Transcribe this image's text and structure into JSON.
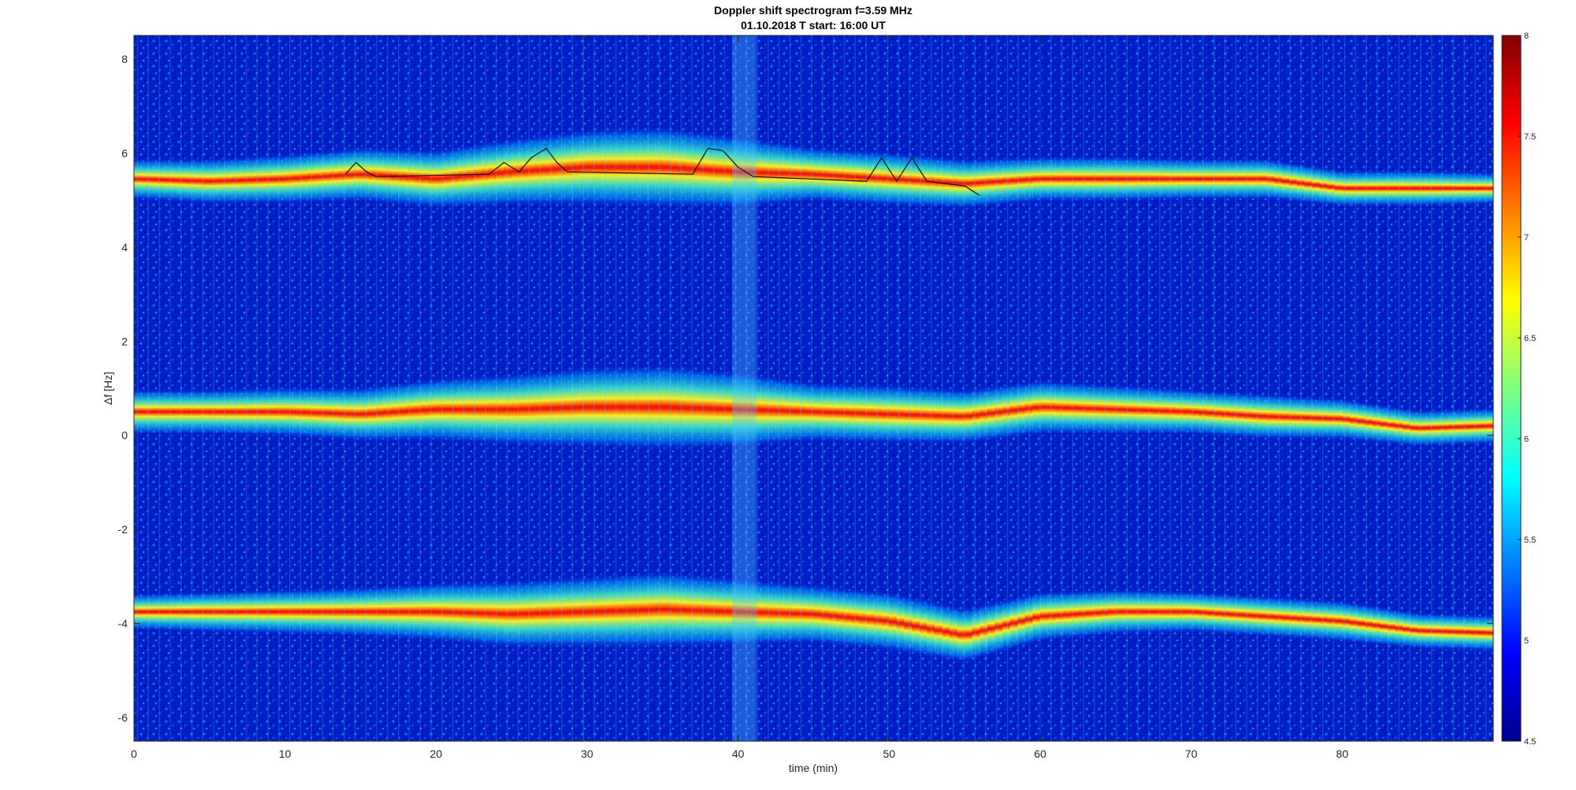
{
  "chart_data": {
    "type": "heatmap",
    "title": "Doppler shift spectrogram f=3.59 MHz",
    "subtitle": "01.10.2018   T start: 16:00 UT",
    "xlabel": "time (min)",
    "ylabel": "Δf [Hz]",
    "xlim": [
      0,
      90
    ],
    "ylim": [
      -6.5,
      8.5
    ],
    "xticks": [
      "0",
      "10",
      "20",
      "30",
      "40",
      "50",
      "60",
      "70",
      "80"
    ],
    "yticks": [
      "-6",
      "-4",
      "-2",
      "0",
      "2",
      "4",
      "6",
      "8"
    ],
    "colorbar": {
      "colormap": "jet",
      "clim": [
        4.5,
        8
      ],
      "ticks": [
        "4.5",
        "5",
        "5.5",
        "6",
        "6.5",
        "7",
        "7.5",
        "8"
      ]
    },
    "grid": false,
    "bands": [
      {
        "t": [
          0,
          5,
          10,
          15,
          20,
          25,
          30,
          35,
          40,
          45,
          50,
          55,
          60,
          65,
          70,
          75,
          80,
          85,
          90
        ],
        "df": [
          5.45,
          5.4,
          5.45,
          5.55,
          5.45,
          5.6,
          5.7,
          5.7,
          5.6,
          5.55,
          5.45,
          5.35,
          5.45,
          5.45,
          5.45,
          5.45,
          5.25,
          5.25,
          5.25
        ],
        "width": [
          0.9,
          1.0,
          1.1,
          1.2,
          1.3,
          1.5,
          1.7,
          1.8,
          1.6,
          1.2,
          1.2,
          1.1,
          1.0,
          1.0,
          0.9,
          0.9,
          0.8,
          0.8,
          0.7
        ]
      },
      {
        "t": [
          0,
          5,
          10,
          15,
          20,
          25,
          30,
          35,
          40,
          45,
          50,
          55,
          60,
          65,
          70,
          75,
          80,
          85,
          90
        ],
        "df": [
          0.5,
          0.5,
          0.5,
          0.45,
          0.55,
          0.55,
          0.6,
          0.6,
          0.55,
          0.5,
          0.45,
          0.4,
          0.6,
          0.55,
          0.5,
          0.4,
          0.35,
          0.15,
          0.2
        ],
        "width": [
          1.0,
          1.0,
          1.1,
          1.2,
          1.4,
          1.6,
          1.8,
          1.9,
          1.7,
          1.3,
          1.3,
          1.2,
          1.2,
          1.1,
          1.0,
          1.0,
          0.9,
          0.8,
          0.8
        ]
      },
      {
        "t": [
          0,
          5,
          10,
          15,
          20,
          25,
          30,
          35,
          40,
          45,
          50,
          55,
          60,
          65,
          70,
          75,
          80,
          85,
          90
        ],
        "df": [
          -3.75,
          -3.75,
          -3.75,
          -3.75,
          -3.75,
          -3.8,
          -3.75,
          -3.7,
          -3.75,
          -3.8,
          -3.95,
          -4.25,
          -3.85,
          -3.75,
          -3.75,
          -3.85,
          -3.95,
          -4.15,
          -4.2
        ],
        "width": [
          0.8,
          0.9,
          1.0,
          1.1,
          1.3,
          1.5,
          1.6,
          1.7,
          1.5,
          1.3,
          1.3,
          1.2,
          1.1,
          1.0,
          0.9,
          0.9,
          0.9,
          0.8,
          0.8
        ]
      }
    ],
    "trace": {
      "t": [
        14,
        14.7,
        15.4,
        16,
        23.5,
        24.5,
        25.5,
        26.3,
        27.3,
        28,
        28.7,
        37,
        38,
        39,
        40,
        41,
        48.5,
        49.5,
        50.5,
        51.5,
        52.5,
        55,
        56
      ],
      "df": [
        5.55,
        5.8,
        5.6,
        5.5,
        5.55,
        5.8,
        5.6,
        5.9,
        6.1,
        5.8,
        5.6,
        5.55,
        6.1,
        6.05,
        5.7,
        5.5,
        5.4,
        5.9,
        5.4,
        5.9,
        5.4,
        5.3,
        5.1
      ]
    }
  }
}
